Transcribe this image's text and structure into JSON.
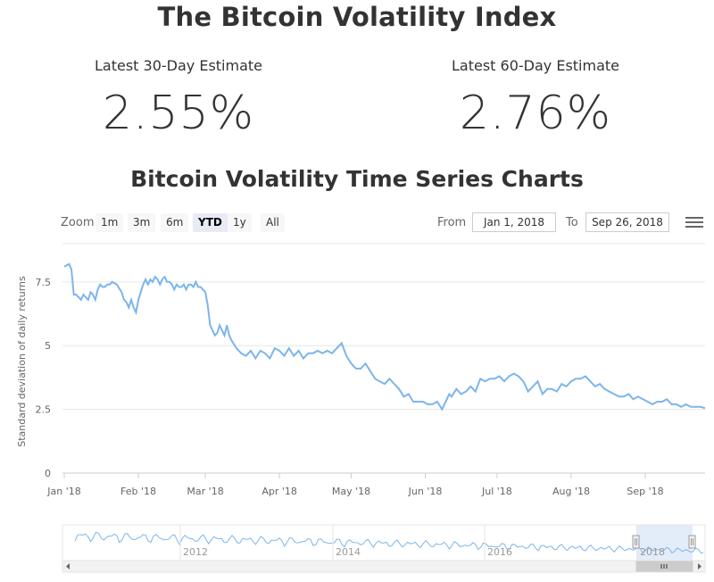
{
  "header": {
    "title": "The Bitcoin Volatility Index",
    "est30_label": "Latest 30-Day Estimate",
    "est30_value": "2.55%",
    "est60_label": "Latest 60-Day Estimate",
    "est60_value": "2.76%",
    "subtitle": "Bitcoin Volatility Time Series Charts"
  },
  "toolbar": {
    "zoom_label": "Zoom",
    "buttons": [
      "1m",
      "3m",
      "6m",
      "YTD",
      "1y",
      "All"
    ],
    "active": "YTD",
    "from_label": "From",
    "from_value": "Jan 1, 2018",
    "to_label": "To",
    "to_value": "Sep 26, 2018",
    "menu_icon": "hamburger-menu-icon"
  },
  "colors": {
    "series": "#7cb5ec",
    "grid": "#e6e6e6",
    "navigator_mask": "#dbe8f7",
    "scrollbar": "#f2f2f2"
  },
  "chart_data": {
    "type": "line",
    "ylabel": "Standard deviation of daily returns",
    "ylim": [
      0,
      9
    ],
    "yticks": [
      "0",
      "2.5",
      "5",
      "7.5"
    ],
    "xlim_days": [
      0,
      268
    ],
    "xticks": [
      "Jan '18",
      "Feb '18",
      "Mar '18",
      "Apr '18",
      "May '18",
      "Jun '18",
      "Jul '18",
      "Aug '18",
      "Sep '18"
    ],
    "xtick_days": [
      0,
      31,
      59,
      90,
      120,
      151,
      181,
      212,
      243
    ],
    "grid": true,
    "legend": "none",
    "series": [
      {
        "x": [
          0,
          2,
          3,
          4,
          5,
          7,
          8,
          9,
          10,
          11,
          12,
          13,
          14,
          15,
          16,
          17,
          18,
          19,
          20,
          22,
          24,
          25,
          26,
          27,
          28,
          29,
          30,
          31,
          32,
          33,
          34,
          35,
          36,
          37,
          38,
          39,
          40,
          41,
          42,
          43,
          44,
          45,
          46,
          47,
          48,
          49,
          50,
          51,
          52,
          53,
          54,
          55,
          56,
          57,
          58,
          59,
          60,
          61,
          62,
          63,
          64,
          65,
          66,
          67,
          68,
          69,
          70,
          72,
          74,
          76,
          78,
          80,
          82,
          84,
          86,
          88,
          90,
          92,
          94,
          96,
          98,
          100,
          102,
          104,
          106,
          108,
          110,
          112,
          114,
          116,
          118,
          120,
          122,
          124,
          126,
          128,
          130,
          132,
          134,
          136,
          138,
          140,
          142,
          144,
          146,
          148,
          150,
          152,
          154,
          156,
          158,
          160,
          161,
          162,
          164,
          166,
          168,
          170,
          172,
          174,
          176,
          178,
          180,
          182,
          184,
          186,
          188,
          190,
          192,
          194,
          196,
          198,
          200,
          202,
          204,
          206,
          208,
          210,
          212,
          214,
          216,
          218,
          220,
          222,
          224,
          226,
          228,
          230,
          232,
          234,
          236,
          238,
          240,
          242,
          244,
          246,
          248,
          250,
          252,
          254,
          256,
          258,
          260,
          262,
          264,
          266,
          268
        ],
        "y": [
          8.1,
          8.2,
          8.0,
          7.0,
          7.0,
          6.8,
          7.0,
          6.9,
          6.8,
          7.1,
          7.0,
          6.8,
          7.2,
          7.4,
          7.3,
          7.3,
          7.4,
          7.4,
          7.5,
          7.4,
          7.1,
          6.8,
          6.7,
          6.5,
          6.8,
          6.5,
          6.3,
          6.8,
          7.1,
          7.4,
          7.6,
          7.4,
          7.6,
          7.5,
          7.7,
          7.6,
          7.4,
          7.6,
          7.7,
          7.5,
          7.5,
          7.4,
          7.2,
          7.4,
          7.3,
          7.3,
          7.4,
          7.2,
          7.4,
          7.4,
          7.3,
          7.5,
          7.3,
          7.3,
          7.2,
          7.1,
          6.6,
          5.8,
          5.6,
          5.4,
          5.5,
          5.8,
          5.6,
          5.4,
          5.8,
          5.4,
          5.2,
          4.9,
          4.7,
          4.6,
          4.8,
          4.5,
          4.8,
          4.7,
          4.5,
          4.9,
          4.8,
          4.6,
          4.9,
          4.6,
          4.8,
          4.5,
          4.7,
          4.7,
          4.8,
          4.7,
          4.8,
          4.7,
          4.9,
          5.1,
          4.6,
          4.3,
          4.1,
          4.1,
          4.3,
          4.0,
          3.7,
          3.6,
          3.5,
          3.7,
          3.5,
          3.3,
          3.0,
          3.1,
          2.8,
          2.8,
          2.8,
          2.7,
          2.7,
          2.8,
          2.5,
          2.9,
          3.1,
          3.0,
          3.3,
          3.1,
          3.2,
          3.4,
          3.2,
          3.7,
          3.6,
          3.7,
          3.7,
          3.8,
          3.6,
          3.8,
          3.9,
          3.8,
          3.6,
          3.2,
          3.4,
          3.6,
          3.1,
          3.3,
          3.3,
          3.2,
          3.5,
          3.4,
          3.6,
          3.7,
          3.7,
          3.8,
          3.6,
          3.4,
          3.5,
          3.3,
          3.2,
          3.1,
          3.0,
          3.0,
          3.1,
          2.9,
          3.0,
          2.9,
          2.8,
          2.7,
          2.8,
          2.8,
          2.9,
          2.7,
          2.7,
          2.6,
          2.7,
          2.6,
          2.6,
          2.6,
          2.55
        ]
      }
    ],
    "navigator": {
      "labels": [
        "2012",
        "2014",
        "2016",
        "2018"
      ]
    }
  }
}
